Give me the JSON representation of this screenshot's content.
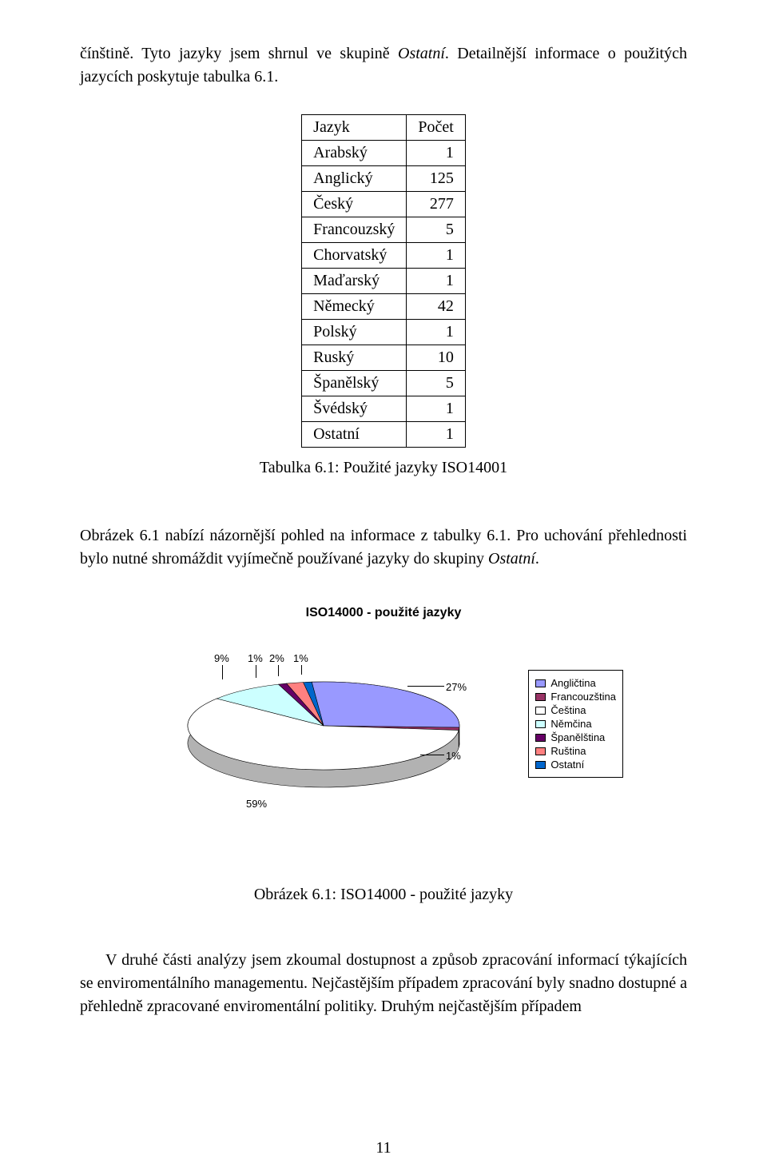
{
  "intro": {
    "pre": "čínštině. Tyto jazyky jsem shrnul ve skupině ",
    "italic": "Ostatní",
    "post": ". Detailnější informace o použitých jazycích poskytuje tabulka 6.1."
  },
  "table": {
    "headers": [
      "Jazyk",
      "Počet"
    ],
    "rows": [
      [
        "Arabský",
        "1"
      ],
      [
        "Anglický",
        "125"
      ],
      [
        "Český",
        "277"
      ],
      [
        "Francouzský",
        "5"
      ],
      [
        "Chorvatský",
        "1"
      ],
      [
        "Maďarský",
        "1"
      ],
      [
        "Německý",
        "42"
      ],
      [
        "Polský",
        "1"
      ],
      [
        "Ruský",
        "10"
      ],
      [
        "Španělský",
        "5"
      ],
      [
        "Švédský",
        "1"
      ],
      [
        "Ostatní",
        "1"
      ]
    ],
    "caption": "Tabulka 6.1: Použité jazyky ISO14001"
  },
  "mid": {
    "pre": "Obrázek 6.1 nabízí názornější pohled na informace z tabulky 6.1. Pro uchování přehlednosti bylo nutné shromáždit vyjímečně používané jazyky do skupiny ",
    "italic": "Ostatní",
    "post": "."
  },
  "chart": {
    "title": "ISO14000 - použité jazyky",
    "type": "pie",
    "background_color": "#ffffff",
    "title_fontsize": 16,
    "label_fontsize": 13,
    "slices": [
      {
        "label": "Angličtina",
        "pct": 27,
        "color": "#9999ff"
      },
      {
        "label": "Francouzština",
        "pct": 1,
        "color": "#993366"
      },
      {
        "label": "Čeština",
        "pct": 59,
        "color": "#ffffff"
      },
      {
        "label": "Němčina",
        "pct": 9,
        "color": "#ccffff"
      },
      {
        "label": "Španělština",
        "pct": 1,
        "color": "#660066"
      },
      {
        "label": "Ruština",
        "pct": 2,
        "color": "#ff8080"
      },
      {
        "label": "Ostatní",
        "pct": 1,
        "color": "#0066cc"
      }
    ],
    "data_labels": {
      "l_27": "27%",
      "l_1a": "1%",
      "l_59": "59%",
      "l_9": "9%",
      "l_1b": "1%",
      "l_2": "2%",
      "l_1c": "1%"
    },
    "caption": "Obrázek 6.1: ISO14000 - použité jazyky"
  },
  "outro": "V druhé části analýzy jsem zkoumal dostupnost a způsob zpracování informací týkajících se enviromentálního managementu. Nejčastějším případem zpracování byly snadno dostupné a přehledně zpracované enviromentální politiky. Druhým nejčastějším případem",
  "pagenum": "11"
}
